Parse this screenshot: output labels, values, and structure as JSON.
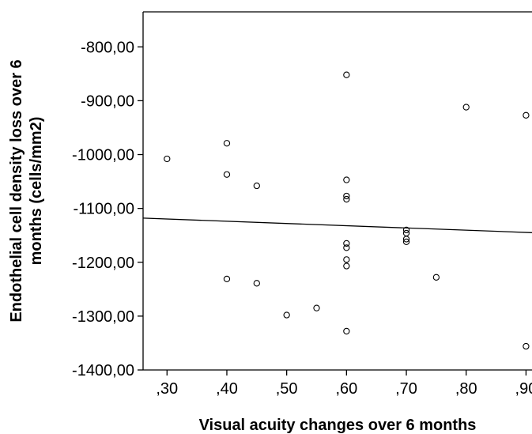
{
  "chart_data": {
    "type": "scatter",
    "title": "",
    "xlabel": "Visual acuity changes over 6 months",
    "ylabel_lines": [
      "Endothelial cell density loss over 6",
      "months (cells/mm2)"
    ],
    "xlim": [
      0.26,
      0.91
    ],
    "ylim": [
      -1400,
      -735
    ],
    "x_ticks": [
      {
        "value": 0.3,
        "label": ",30"
      },
      {
        "value": 0.4,
        "label": ",40"
      },
      {
        "value": 0.5,
        "label": ",50"
      },
      {
        "value": 0.6,
        "label": ",60"
      },
      {
        "value": 0.7,
        "label": ",70"
      },
      {
        "value": 0.8,
        "label": ",80"
      },
      {
        "value": 0.9,
        "label": ",90"
      }
    ],
    "y_ticks": [
      {
        "value": -800,
        "label": "-800,00"
      },
      {
        "value": -900,
        "label": "-900,00"
      },
      {
        "value": -1000,
        "label": "-1000,00"
      },
      {
        "value": -1100,
        "label": "-1100,00"
      },
      {
        "value": -1200,
        "label": "-1200,00"
      },
      {
        "value": -1300,
        "label": "-1300,00"
      },
      {
        "value": -1400,
        "label": "-1400,00"
      }
    ],
    "grid": false,
    "points": [
      {
        "x": 0.3,
        "y": -1008
      },
      {
        "x": 0.4,
        "y": -979
      },
      {
        "x": 0.4,
        "y": -1037
      },
      {
        "x": 0.4,
        "y": -1231
      },
      {
        "x": 0.45,
        "y": -1058
      },
      {
        "x": 0.45,
        "y": -1239
      },
      {
        "x": 0.5,
        "y": -1298
      },
      {
        "x": 0.55,
        "y": -1285
      },
      {
        "x": 0.6,
        "y": -852
      },
      {
        "x": 0.6,
        "y": -1047
      },
      {
        "x": 0.6,
        "y": -1077
      },
      {
        "x": 0.6,
        "y": -1083
      },
      {
        "x": 0.6,
        "y": -1165
      },
      {
        "x": 0.6,
        "y": -1173
      },
      {
        "x": 0.6,
        "y": -1195
      },
      {
        "x": 0.6,
        "y": -1207
      },
      {
        "x": 0.6,
        "y": -1328
      },
      {
        "x": 0.7,
        "y": -1140
      },
      {
        "x": 0.7,
        "y": -1146
      },
      {
        "x": 0.7,
        "y": -1157
      },
      {
        "x": 0.7,
        "y": -1162
      },
      {
        "x": 0.75,
        "y": -1228
      },
      {
        "x": 0.8,
        "y": -912
      },
      {
        "x": 0.9,
        "y": -927
      },
      {
        "x": 0.9,
        "y": -1356
      }
    ],
    "fit_line": {
      "x": [
        0.26,
        0.91
      ],
      "y": [
        -1118,
        -1145
      ]
    }
  }
}
